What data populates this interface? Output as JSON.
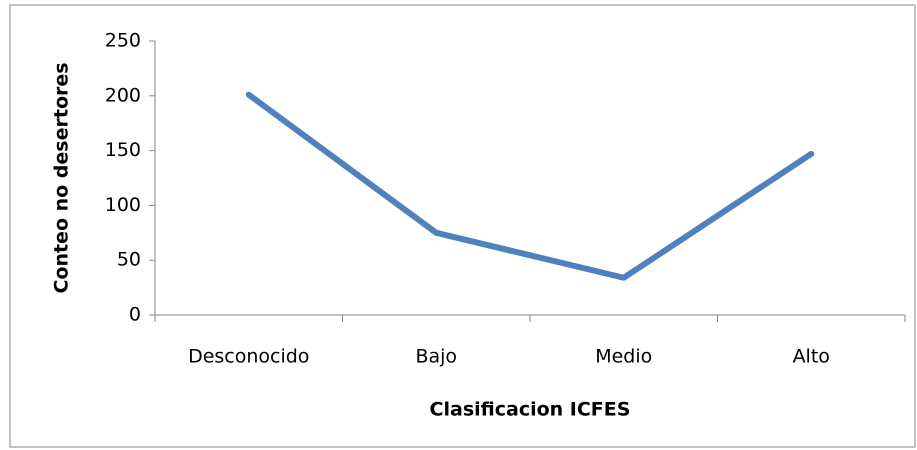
{
  "chart_data": {
    "type": "line",
    "x_label": "Clasificacion ICFES",
    "y_label": "Conteo no desertores",
    "categories": [
      "Desconocido",
      "Bajo",
      "Medio",
      "Alto"
    ],
    "series": [
      {
        "name": "Conteo no desertores",
        "color": "#4f81bd",
        "values": [
          201,
          75,
          34,
          147
        ]
      }
    ],
    "ylim": [
      0,
      250
    ],
    "yticks": [
      0,
      50,
      100,
      150,
      200,
      250
    ],
    "grid": false
  }
}
